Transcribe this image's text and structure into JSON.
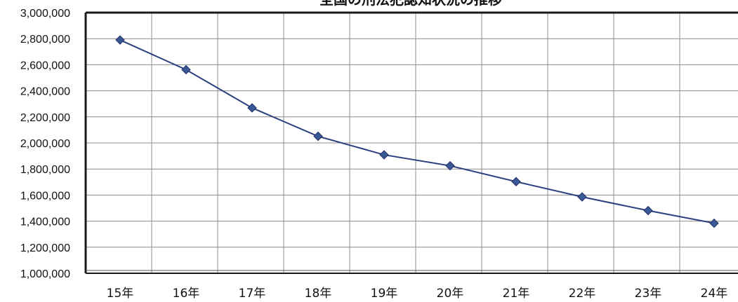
{
  "chart_data": {
    "type": "line",
    "title": "全国の刑法犯認知状況の推移",
    "xlabel": "",
    "ylabel": "",
    "categories": [
      "15年",
      "16年",
      "17年",
      "18年",
      "19年",
      "20年",
      "21年",
      "22年",
      "23年",
      "24年"
    ],
    "series": [
      {
        "values": [
          2790000,
          2562000,
          2269000,
          2051000,
          1909000,
          1825000,
          1703000,
          1586000,
          1481000,
          1384000
        ]
      }
    ],
    "ylim": [
      1000000,
      3000000
    ],
    "y_ticks": [
      1000000,
      1200000,
      1400000,
      1600000,
      1800000,
      2000000,
      2200000,
      2400000,
      2600000,
      2800000,
      3000000
    ],
    "grid": true,
    "legend": "none",
    "colors": {
      "line": "#2b3f7e",
      "marker": "#3a5896",
      "marker_stroke": "#1f2f63",
      "grid": "#8c8c8c",
      "frame": "#1a1a1a"
    }
  }
}
